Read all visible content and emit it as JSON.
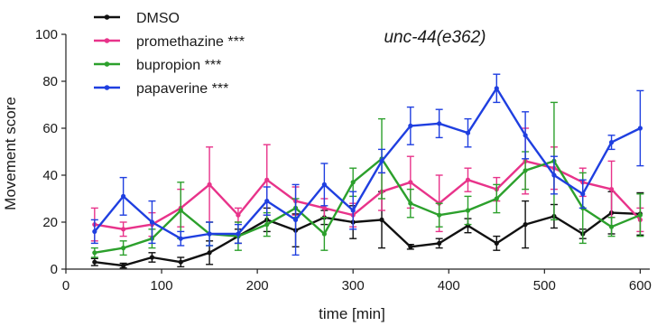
{
  "chart_data": {
    "type": "line",
    "title": "",
    "annotation": "unc-44(e362)",
    "xlabel": "time [min]",
    "ylabel": "Movement score",
    "xlim": [
      0,
      610
    ],
    "ylim": [
      0,
      100
    ],
    "xticks": [
      0,
      100,
      200,
      300,
      400,
      500,
      600
    ],
    "yticks": [
      0,
      20,
      40,
      60,
      80,
      100
    ],
    "x": [
      30,
      60,
      90,
      120,
      150,
      180,
      210,
      240,
      270,
      300,
      330,
      360,
      390,
      420,
      450,
      480,
      510,
      540,
      570,
      600
    ],
    "legend_position": "top-left",
    "series": [
      {
        "name": "DMSO",
        "color": "#111111",
        "values": [
          3,
          1.5,
          5,
          3,
          7,
          14,
          21,
          16.5,
          22,
          20,
          21,
          9.5,
          11,
          18.5,
          11,
          19,
          22.5,
          15,
          24,
          23.5
        ],
        "errors": [
          1.5,
          1,
          2,
          2,
          5,
          3,
          5,
          7,
          3,
          7,
          12,
          1,
          2,
          3,
          3,
          10,
          5,
          2,
          9,
          9
        ]
      },
      {
        "name": "promethazine ***",
        "color": "#e8338a",
        "values": [
          19,
          17,
          19,
          26,
          36,
          23,
          38,
          29,
          26,
          23,
          33,
          37,
          28,
          38,
          34,
          46,
          43,
          37,
          34,
          21
        ],
        "errors": [
          7,
          3,
          5,
          8,
          16,
          3,
          15,
          6,
          4,
          5,
          8,
          11,
          12,
          5,
          5,
          14,
          9,
          6,
          12,
          5
        ]
      },
      {
        "name": "bupropion ***",
        "color": "#2ca02c",
        "values": [
          7,
          9,
          13,
          25,
          15,
          14,
          19,
          26,
          15,
          37,
          47,
          28,
          23,
          25,
          30,
          42,
          46,
          26,
          18,
          23
        ],
        "errors": [
          2,
          3,
          4,
          12,
          5,
          6,
          5,
          4,
          7,
          6,
          17,
          6,
          5,
          6,
          6,
          8,
          25,
          15,
          4,
          9
        ]
      },
      {
        "name": "papaverine ***",
        "color": "#1f3fe0",
        "values": [
          16,
          31,
          20,
          13,
          15,
          15,
          29,
          21,
          36,
          25,
          46,
          61,
          62,
          58,
          77,
          57,
          40,
          32,
          54,
          60
        ],
        "errors": [
          5,
          8,
          9,
          3,
          5,
          4,
          6,
          15,
          9,
          8,
          5,
          8,
          6,
          6,
          6,
          10,
          8,
          6,
          3,
          16
        ]
      }
    ]
  }
}
